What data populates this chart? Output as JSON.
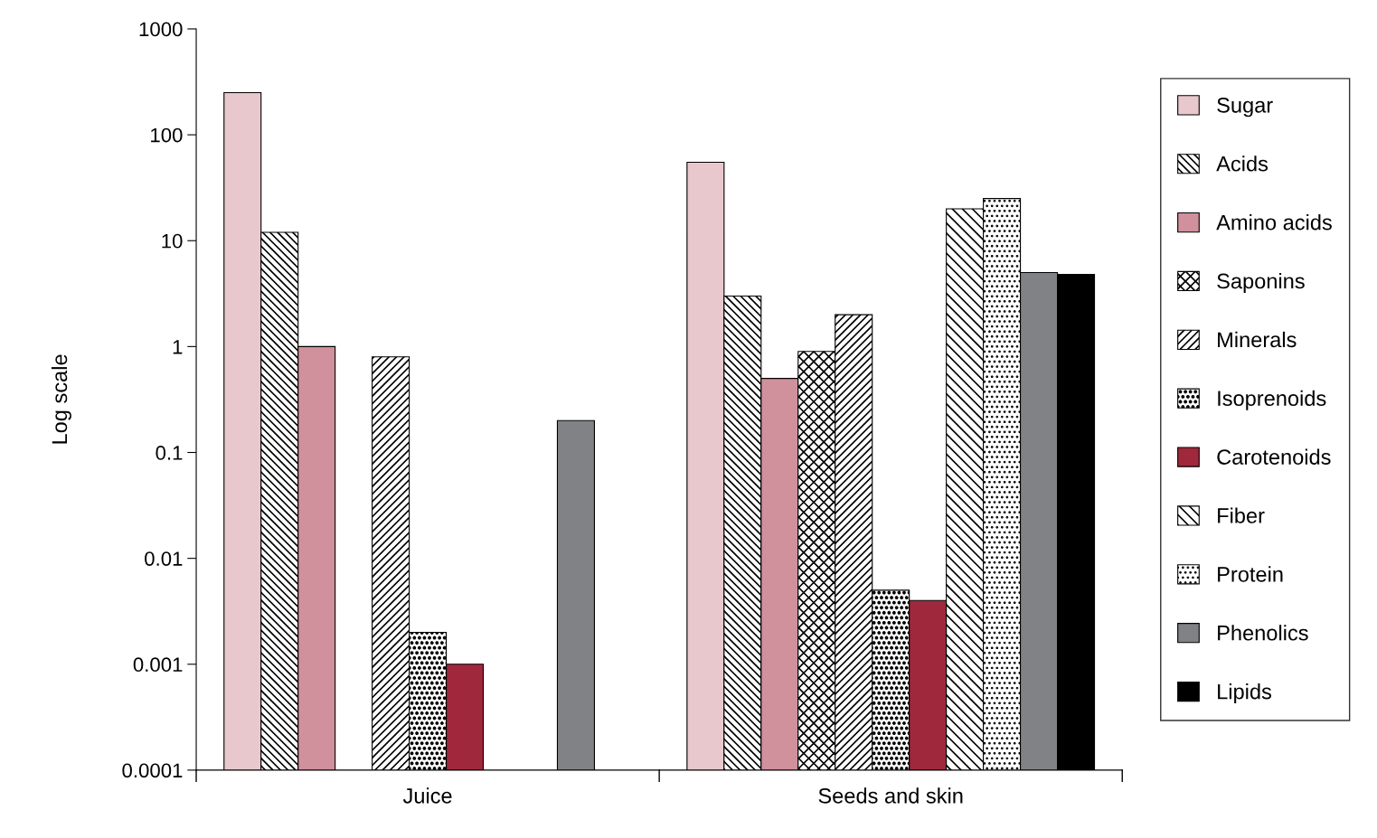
{
  "chart_data": {
    "type": "bar",
    "ylabel": "Log scale",
    "log": "y",
    "categories": [
      "Juice",
      "Seeds and skin"
    ],
    "ylim": [
      0.0001,
      1000
    ],
    "yticks": [
      0.0001,
      0.001,
      0.01,
      0.1,
      1,
      10,
      100,
      1000
    ],
    "legend": "right",
    "grid": false,
    "series": [
      {
        "name": "Sugar",
        "color": "#e8c8cd",
        "values": [
          250,
          55
        ]
      },
      {
        "name": "Acids",
        "color": "#000000",
        "values": [
          12,
          3
        ]
      },
      {
        "name": "Amino acids",
        "color": "#d0909c",
        "values": [
          1,
          0.5
        ]
      },
      {
        "name": "Saponins",
        "color": "#000000",
        "values": [
          null,
          0.9
        ]
      },
      {
        "name": "Minerals",
        "color": "#000000",
        "values": [
          0.8,
          2
        ]
      },
      {
        "name": "Isoprenoids",
        "color": "#000000",
        "values": [
          0.002,
          0.005
        ]
      },
      {
        "name": "Carotenoids",
        "color": "#a0283c",
        "values": [
          0.001,
          0.004
        ]
      },
      {
        "name": "Fiber",
        "color": "#000000",
        "values": [
          null,
          20
        ]
      },
      {
        "name": "Protein",
        "color": "#000000",
        "values": [
          null,
          25
        ]
      },
      {
        "name": "Phenolics",
        "color": "#808285",
        "values": [
          0.2,
          5
        ]
      },
      {
        "name": "Lipids",
        "color": "#000000",
        "values": [
          null,
          4.8
        ]
      }
    ]
  }
}
